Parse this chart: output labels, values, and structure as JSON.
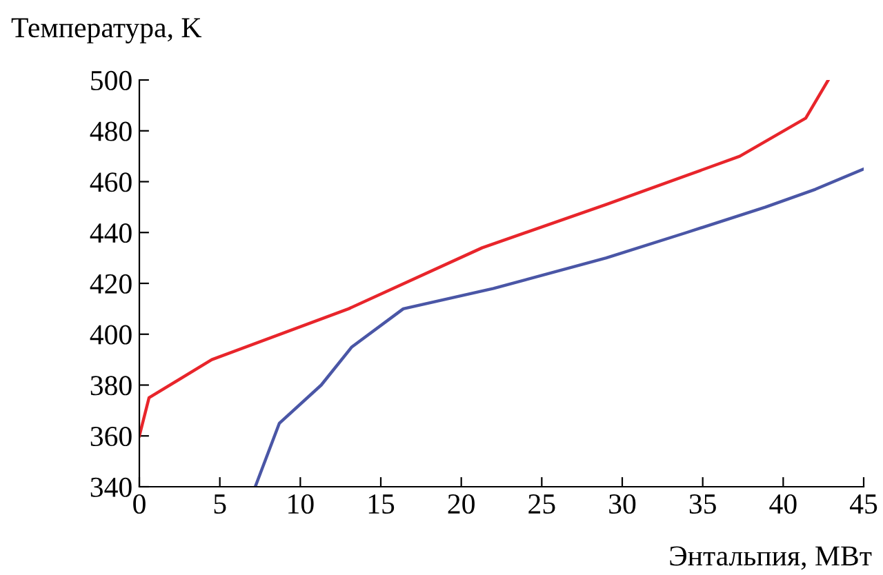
{
  "chart_data": {
    "type": "line",
    "ylabel": "Температура, K",
    "xlabel": "Энтальпия, МВт",
    "xlim": [
      0,
      45
    ],
    "xticks": [
      0,
      5,
      10,
      15,
      20,
      25,
      30,
      35,
      40,
      45
    ],
    "ylim": [
      340,
      500
    ],
    "yticks": [
      340,
      360,
      380,
      400,
      420,
      440,
      460,
      480,
      500
    ],
    "grid": false,
    "legend": false,
    "marker": "none",
    "line_style": "solid",
    "series": [
      {
        "color": "#e8252b",
        "x": [
          0,
          0.6,
          4.5,
          13,
          21.3,
          29,
          37.3,
          41.4,
          42.8
        ],
        "values": [
          360,
          375,
          390,
          410,
          434,
          451,
          470,
          485,
          500
        ]
      },
      {
        "color": "#4a56a6",
        "x": [
          7.2,
          8.7,
          11.3,
          13.2,
          16.4,
          22,
          29,
          34,
          38.9,
          42,
          45
        ],
        "values": [
          340,
          365,
          380,
          395,
          410,
          418,
          430,
          440,
          450,
          457,
          465
        ]
      }
    ]
  }
}
